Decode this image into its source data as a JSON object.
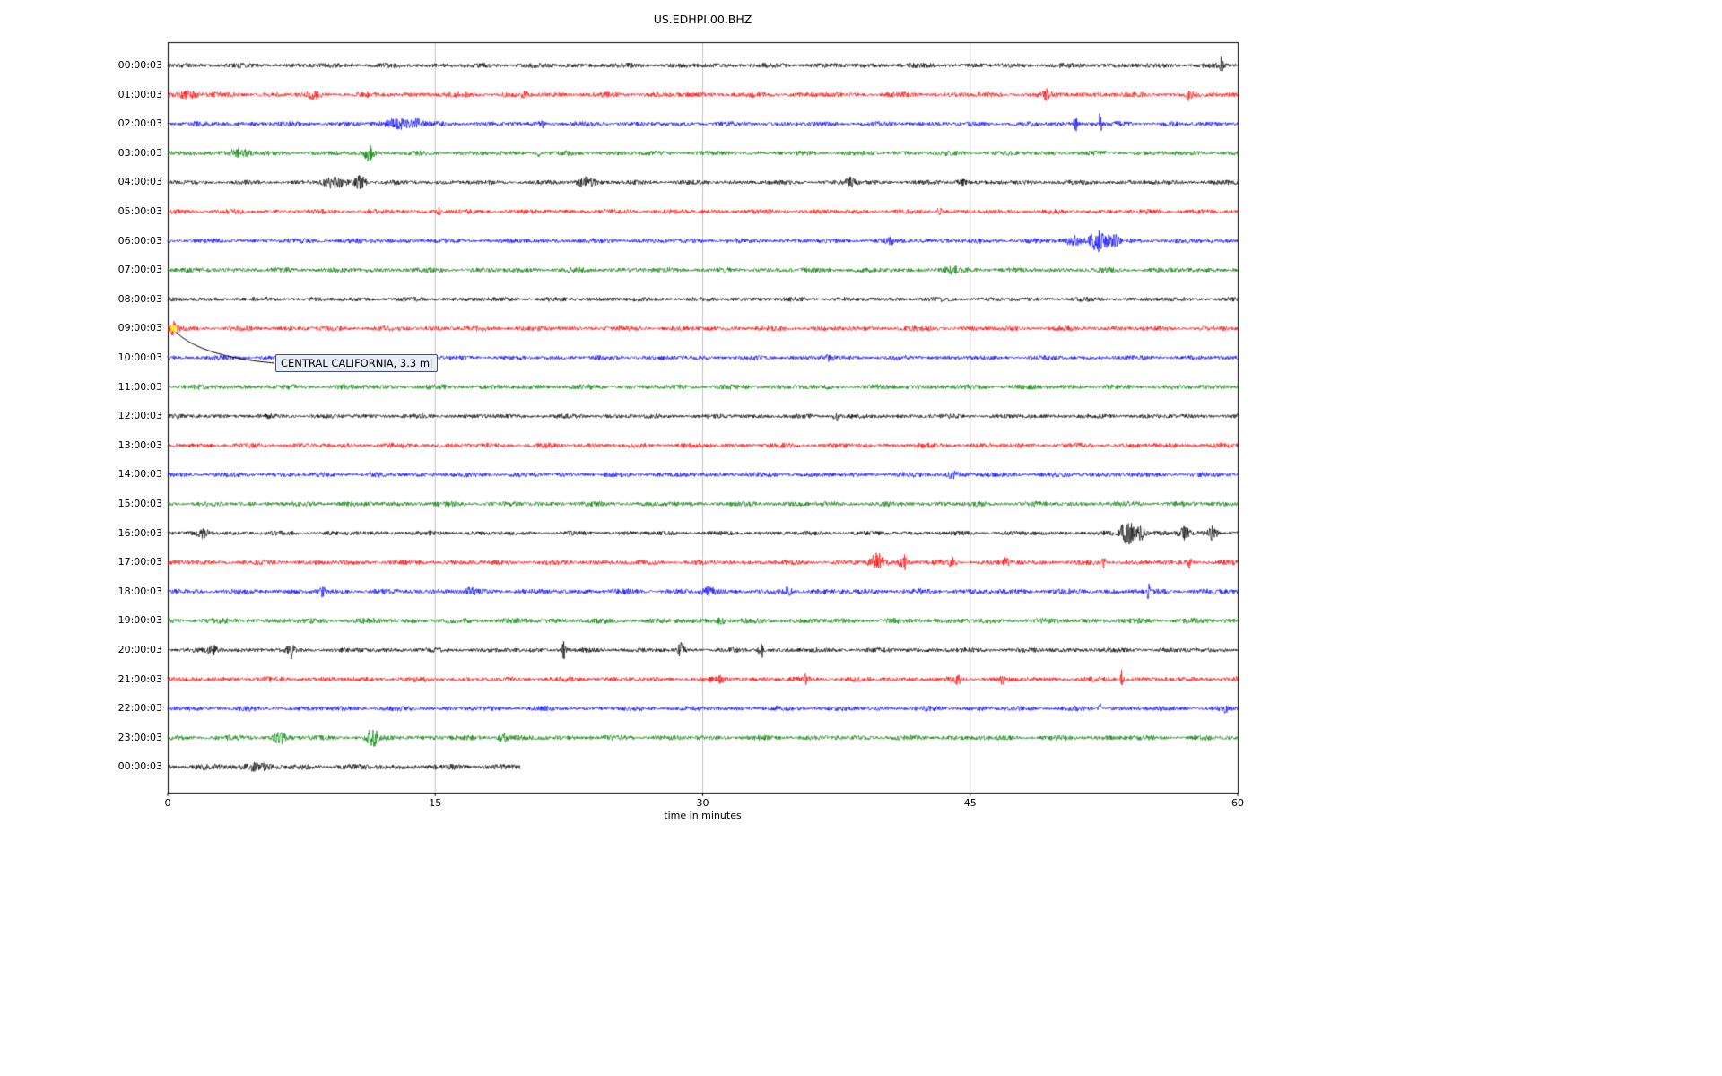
{
  "chart_data": {
    "type": "line",
    "variant": "helicorder-seismogram",
    "title": "US.EDHPI.00.BHZ",
    "xlabel": "time in minutes",
    "xlim": [
      0,
      60
    ],
    "x_ticks": [
      0,
      15,
      30,
      45,
      60
    ],
    "grid_minutes": [
      15,
      30,
      45
    ],
    "grid_on": true,
    "colors": {
      "trace_cycle": [
        "#000000",
        "#ff0000",
        "#0000ff",
        "#008000"
      ],
      "grid": "#b0b0b0",
      "axis": "#000000",
      "annotation_bg": "#e8ecf8",
      "annotation_border": "#41517a",
      "event_marker": "#ffee00"
    },
    "rows": [
      {
        "label": "00:00:03",
        "color": "#000000",
        "amp": 2.6,
        "events": [
          {
            "m": 59.1,
            "a": 9,
            "d": 0.08
          }
        ]
      },
      {
        "label": "01:00:03",
        "color": "#ff0000",
        "amp": 2.8,
        "events": [
          {
            "m": 1.2,
            "a": 4,
            "d": 0.5
          },
          {
            "m": 8.2,
            "a": 3,
            "d": 0.3
          },
          {
            "m": 20.0,
            "a": 3,
            "d": 0.15
          },
          {
            "m": 49.3,
            "a": 4,
            "d": 0.2
          },
          {
            "m": 57.3,
            "a": 5,
            "d": 0.15
          }
        ]
      },
      {
        "label": "02:00:03",
        "color": "#0000ff",
        "amp": 2.6,
        "events": [
          {
            "m": 13.0,
            "a": 5,
            "d": 0.8
          },
          {
            "m": 14.0,
            "a": 4,
            "d": 0.3
          },
          {
            "m": 21.0,
            "a": 3,
            "d": 0.2
          },
          {
            "m": 50.9,
            "a": 8,
            "d": 0.1
          },
          {
            "m": 52.3,
            "a": 16,
            "d": 0.07
          }
        ]
      },
      {
        "label": "03:00:03",
        "color": "#008000",
        "amp": 2.6,
        "events": [
          {
            "m": 4.0,
            "a": 4,
            "d": 0.6
          },
          {
            "m": 11.3,
            "a": 9,
            "d": 0.25
          },
          {
            "m": 20.8,
            "a": 5,
            "d": 0.1
          }
        ]
      },
      {
        "label": "04:00:03",
        "color": "#000000",
        "amp": 2.4,
        "events": [
          {
            "m": 9.3,
            "a": 5,
            "d": 0.6
          },
          {
            "m": 10.8,
            "a": 8,
            "d": 0.3
          },
          {
            "m": 23.5,
            "a": 5,
            "d": 0.5
          },
          {
            "m": 38.3,
            "a": 4,
            "d": 0.3
          },
          {
            "m": 44.5,
            "a": 3,
            "d": 0.3
          }
        ]
      },
      {
        "label": "05:00:03",
        "color": "#ff0000",
        "amp": 2.6,
        "events": [
          {
            "m": 15.2,
            "a": 4,
            "d": 0.1
          },
          {
            "m": 43.3,
            "a": 4,
            "d": 0.15
          }
        ]
      },
      {
        "label": "06:00:03",
        "color": "#0000ff",
        "amp": 2.6,
        "events": [
          {
            "m": 40.5,
            "a": 3,
            "d": 0.2
          },
          {
            "m": 50.8,
            "a": 5,
            "d": 0.4
          },
          {
            "m": 52.2,
            "a": 11,
            "d": 0.5
          },
          {
            "m": 53.0,
            "a": 7,
            "d": 0.3
          }
        ]
      },
      {
        "label": "07:00:03",
        "color": "#008000",
        "amp": 2.7,
        "events": [
          {
            "m": 44.0,
            "a": 3,
            "d": 0.4
          }
        ]
      },
      {
        "label": "08:00:03",
        "color": "#000000",
        "amp": 2.4,
        "events": []
      },
      {
        "label": "09:00:03",
        "color": "#ff0000",
        "amp": 2.7,
        "events": [
          {
            "m": 0.3,
            "a": 6,
            "d": 0.3
          }
        ]
      },
      {
        "label": "10:00:03",
        "color": "#0000ff",
        "amp": 2.5,
        "events": [
          {
            "m": 37.0,
            "a": 3,
            "d": 0.3
          }
        ]
      },
      {
        "label": "11:00:03",
        "color": "#008000",
        "amp": 2.7,
        "events": []
      },
      {
        "label": "12:00:03",
        "color": "#000000",
        "amp": 2.4,
        "events": [
          {
            "m": 37.5,
            "a": 4,
            "d": 0.2
          }
        ]
      },
      {
        "label": "13:00:03",
        "color": "#ff0000",
        "amp": 2.7,
        "events": []
      },
      {
        "label": "14:00:03",
        "color": "#0000ff",
        "amp": 2.6,
        "events": [
          {
            "m": 44.0,
            "a": 3,
            "d": 0.3
          }
        ]
      },
      {
        "label": "15:00:03",
        "color": "#008000",
        "amp": 2.7,
        "events": []
      },
      {
        "label": "16:00:03",
        "color": "#000000",
        "amp": 2.4,
        "events": [
          {
            "m": 2.0,
            "a": 4,
            "d": 0.3
          },
          {
            "m": 53.8,
            "a": 15,
            "d": 0.35
          },
          {
            "m": 54.5,
            "a": 8,
            "d": 0.3
          },
          {
            "m": 57.0,
            "a": 6,
            "d": 0.3
          },
          {
            "m": 58.6,
            "a": 7,
            "d": 0.25
          }
        ]
      },
      {
        "label": "17:00:03",
        "color": "#ff0000",
        "amp": 2.7,
        "events": [
          {
            "m": 39.8,
            "a": 9,
            "d": 0.4
          },
          {
            "m": 41.3,
            "a": 7,
            "d": 0.3
          },
          {
            "m": 44.0,
            "a": 4,
            "d": 0.2
          },
          {
            "m": 47.0,
            "a": 5,
            "d": 0.15
          },
          {
            "m": 52.5,
            "a": 6,
            "d": 0.1
          },
          {
            "m": 57.3,
            "a": 7,
            "d": 0.08
          }
        ]
      },
      {
        "label": "18:00:03",
        "color": "#0000ff",
        "amp": 2.9,
        "events": [
          {
            "m": 8.7,
            "a": 7,
            "d": 0.12
          },
          {
            "m": 17.0,
            "a": 4,
            "d": 0.2
          },
          {
            "m": 30.3,
            "a": 4,
            "d": 0.4
          },
          {
            "m": 34.8,
            "a": 4,
            "d": 0.2
          },
          {
            "m": 55.0,
            "a": 10,
            "d": 0.07
          }
        ]
      },
      {
        "label": "19:00:03",
        "color": "#008000",
        "amp": 2.9,
        "events": [
          {
            "m": 31.0,
            "a": 3,
            "d": 0.3
          }
        ]
      },
      {
        "label": "20:00:03",
        "color": "#000000",
        "amp": 2.5,
        "events": [
          {
            "m": 2.5,
            "a": 4,
            "d": 0.3
          },
          {
            "m": 6.9,
            "a": 8,
            "d": 0.15
          },
          {
            "m": 22.2,
            "a": 9,
            "d": 0.12
          },
          {
            "m": 28.8,
            "a": 7,
            "d": 0.2
          },
          {
            "m": 33.3,
            "a": 8,
            "d": 0.15
          }
        ]
      },
      {
        "label": "21:00:03",
        "color": "#ff0000",
        "amp": 2.7,
        "events": [
          {
            "m": 31.0,
            "a": 5,
            "d": 0.12
          },
          {
            "m": 35.8,
            "a": 6,
            "d": 0.12
          },
          {
            "m": 44.3,
            "a": 6,
            "d": 0.12
          },
          {
            "m": 46.8,
            "a": 5,
            "d": 0.1
          },
          {
            "m": 53.5,
            "a": 11,
            "d": 0.07
          }
        ]
      },
      {
        "label": "22:00:03",
        "color": "#0000ff",
        "amp": 2.6,
        "events": [
          {
            "m": 52.3,
            "a": 5,
            "d": 0.1
          },
          {
            "m": 59.3,
            "a": 6,
            "d": 0.1
          }
        ]
      },
      {
        "label": "23:00:03",
        "color": "#008000",
        "amp": 2.7,
        "events": [
          {
            "m": 6.3,
            "a": 7,
            "d": 0.3
          },
          {
            "m": 11.5,
            "a": 9,
            "d": 0.3
          },
          {
            "m": 18.8,
            "a": 6,
            "d": 0.25
          }
        ]
      },
      {
        "label": "00:00:03",
        "color": "#000000",
        "amp": 3.0,
        "end": 19.8,
        "events": [
          {
            "m": 5.0,
            "a": 3,
            "d": 0.8
          }
        ]
      }
    ],
    "annotation": {
      "text": "CENTRAL CALIFORNIA, 3.3 ml",
      "row_index": 9,
      "minute": 0.3
    }
  }
}
